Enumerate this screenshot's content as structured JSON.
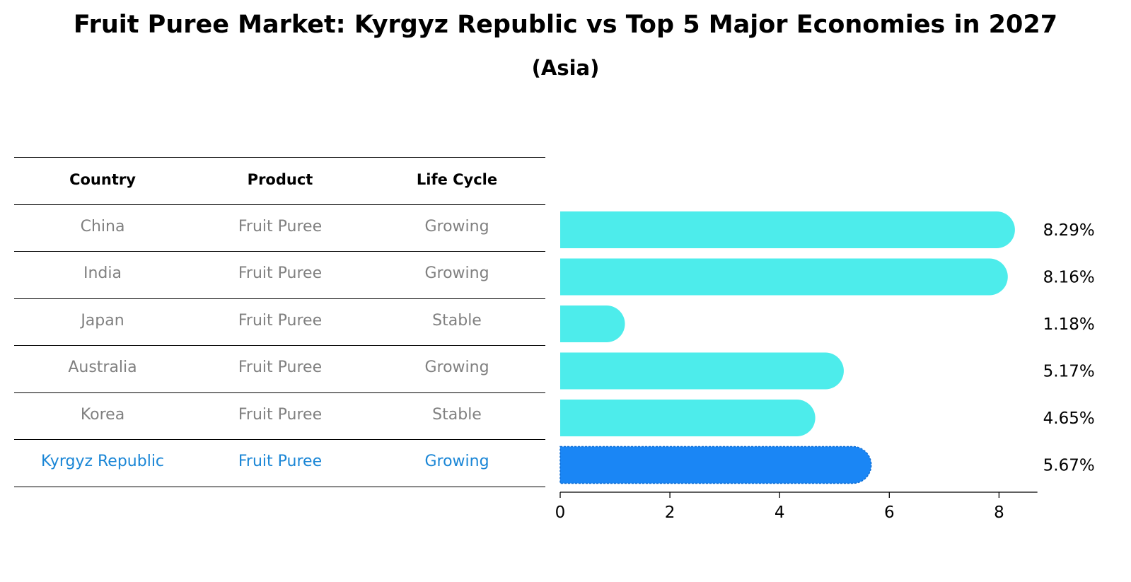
{
  "title": "Fruit Puree Market: Kyrgyz Republic vs Top 5 Major Economies in 2027",
  "subtitle": "(Asia)",
  "table": {
    "headers": [
      "Country",
      "Product",
      "Life Cycle"
    ],
    "rows": [
      {
        "country": "China",
        "product": "Fruit Puree",
        "life_cycle": "Growing",
        "highlight": false
      },
      {
        "country": "India",
        "product": "Fruit Puree",
        "life_cycle": "Growing",
        "highlight": false
      },
      {
        "country": "Japan",
        "product": "Fruit Puree",
        "life_cycle": "Stable",
        "highlight": false
      },
      {
        "country": "Australia",
        "product": "Fruit Puree",
        "life_cycle": "Growing",
        "highlight": false
      },
      {
        "country": "Korea",
        "product": "Fruit Puree",
        "life_cycle": "Stable",
        "highlight": false
      },
      {
        "country": "Kyrgyz Republic",
        "product": "Fruit Puree",
        "life_cycle": "Growing",
        "highlight": true
      }
    ]
  },
  "colors": {
    "bar": "#4deceb",
    "highlight_bar": "#1a86f5",
    "highlight_text": "#1a86d6",
    "muted_text": "#808080"
  },
  "chart_data": {
    "type": "bar",
    "orientation": "horizontal",
    "categories": [
      "China",
      "India",
      "Japan",
      "Australia",
      "Korea",
      "Kyrgyz Republic"
    ],
    "values": [
      8.29,
      8.16,
      1.18,
      5.17,
      4.65,
      5.67
    ],
    "value_labels": [
      "8.29%",
      "8.16%",
      "1.18%",
      "5.17%",
      "4.65%",
      "5.67%"
    ],
    "highlight_index": 5,
    "xlim": [
      0,
      8.7
    ],
    "xticks": [
      0,
      2,
      4,
      6,
      8
    ],
    "xlabel": "",
    "ylabel": "",
    "grid": false
  }
}
